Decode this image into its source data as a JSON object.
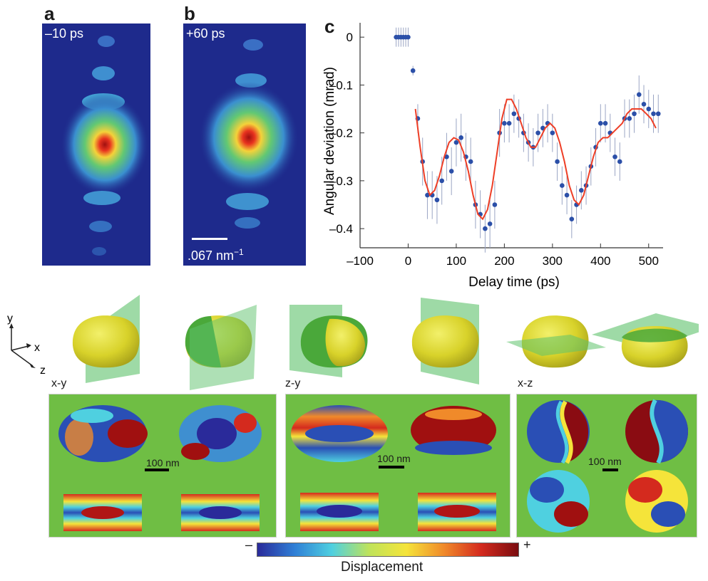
{
  "panels": {
    "a": "a",
    "b": "b",
    "c": "c"
  },
  "panel_a": {
    "label": "–10 ps"
  },
  "panel_b": {
    "label": "+60 ps",
    "scale_label": ".067 nm",
    "scale_exp": "−1"
  },
  "axes_icon": {
    "y": "y",
    "x": "x",
    "z": "z"
  },
  "maps": [
    {
      "plane": "x-y",
      "scale": "100 nm"
    },
    {
      "plane": "z-y",
      "scale": "100 nm"
    },
    {
      "plane": "x-z",
      "scale": "100 nm"
    }
  ],
  "colorbar": {
    "minus": "–",
    "plus": "+",
    "label": "Displacement",
    "colors": [
      "#2a2a9a",
      "#2f7fd6",
      "#4fd0e0",
      "#bfe35a",
      "#f5e43a",
      "#f08a2a",
      "#d42a1e",
      "#7a0c10"
    ]
  },
  "chart_data": {
    "type": "scatter",
    "xlabel": "Delay time (ps)",
    "ylabel": "Angular deviation (mrad)",
    "xlim": [
      -100,
      530
    ],
    "ylim": [
      -0.44,
      0.03
    ],
    "xticks": [
      -100,
      0,
      100,
      200,
      300,
      400,
      500
    ],
    "yticks": [
      0,
      -0.1,
      -0.2,
      -0.3,
      -0.4
    ],
    "ytick_labels": [
      "0",
      "–0.1",
      "–0.2",
      "–0.3",
      "–0.4"
    ],
    "xtick_labels": [
      "–100",
      "0",
      "100",
      "200",
      "300",
      "400",
      "500"
    ],
    "series": [
      {
        "kind": "points",
        "color": "#2b4fa8",
        "x": [
          -25,
          -20,
          -15,
          -10,
          -5,
          0,
          10,
          20,
          30,
          40,
          50,
          60,
          70,
          80,
          90,
          100,
          110,
          120,
          130,
          140,
          150,
          160,
          170,
          180,
          190,
          200,
          210,
          220,
          230,
          240,
          250,
          260,
          270,
          280,
          290,
          300,
          310,
          320,
          330,
          340,
          350,
          360,
          370,
          380,
          390,
          400,
          410,
          420,
          430,
          440,
          450,
          460,
          470,
          480,
          490,
          500,
          510,
          520
        ],
        "y": [
          0,
          0,
          0,
          0,
          0,
          0,
          -0.07,
          -0.17,
          -0.26,
          -0.33,
          -0.33,
          -0.34,
          -0.3,
          -0.25,
          -0.28,
          -0.22,
          -0.21,
          -0.25,
          -0.26,
          -0.35,
          -0.37,
          -0.4,
          -0.39,
          -0.35,
          -0.2,
          -0.18,
          -0.18,
          -0.16,
          -0.17,
          -0.2,
          -0.22,
          -0.23,
          -0.2,
          -0.19,
          -0.18,
          -0.2,
          -0.26,
          -0.31,
          -0.33,
          -0.38,
          -0.35,
          -0.32,
          -0.31,
          -0.27,
          -0.23,
          -0.18,
          -0.18,
          -0.2,
          -0.25,
          -0.26,
          -0.17,
          -0.17,
          -0.16,
          -0.12,
          -0.14,
          -0.15,
          -0.16,
          -0.16
        ],
        "err": [
          0.02,
          0.02,
          0.02,
          0.02,
          0.02,
          0.02,
          0.01,
          0.03,
          0.05,
          0.05,
          0.05,
          0.05,
          0.05,
          0.05,
          0.05,
          0.05,
          0.05,
          0.05,
          0.05,
          0.05,
          0.05,
          0.05,
          0.05,
          0.05,
          0.05,
          0.04,
          0.04,
          0.04,
          0.04,
          0.04,
          0.04,
          0.04,
          0.04,
          0.04,
          0.04,
          0.04,
          0.04,
          0.04,
          0.04,
          0.04,
          0.04,
          0.04,
          0.04,
          0.04,
          0.04,
          0.04,
          0.04,
          0.04,
          0.04,
          0.04,
          0.04,
          0.04,
          0.04,
          0.04,
          0.04,
          0.04,
          0.04,
          0.04
        ]
      },
      {
        "kind": "line",
        "color": "#ee3e26",
        "x": [
          15,
          25,
          35,
          45,
          55,
          65,
          75,
          85,
          95,
          105,
          115,
          125,
          135,
          145,
          155,
          165,
          175,
          185,
          195,
          205,
          215,
          225,
          235,
          245,
          255,
          265,
          275,
          285,
          295,
          305,
          315,
          325,
          335,
          345,
          355,
          365,
          375,
          385,
          395,
          405,
          415,
          425,
          435,
          445,
          455,
          465,
          475,
          485,
          495,
          505,
          515
        ],
        "y": [
          -0.15,
          -0.23,
          -0.3,
          -0.33,
          -0.32,
          -0.29,
          -0.25,
          -0.22,
          -0.21,
          -0.215,
          -0.24,
          -0.28,
          -0.33,
          -0.37,
          -0.38,
          -0.36,
          -0.31,
          -0.24,
          -0.17,
          -0.13,
          -0.13,
          -0.15,
          -0.18,
          -0.21,
          -0.23,
          -0.23,
          -0.21,
          -0.19,
          -0.18,
          -0.19,
          -0.22,
          -0.26,
          -0.31,
          -0.34,
          -0.35,
          -0.33,
          -0.29,
          -0.25,
          -0.22,
          -0.21,
          -0.21,
          -0.2,
          -0.19,
          -0.18,
          -0.16,
          -0.15,
          -0.15,
          -0.15,
          -0.16,
          -0.17,
          -0.19
        ]
      }
    ]
  }
}
